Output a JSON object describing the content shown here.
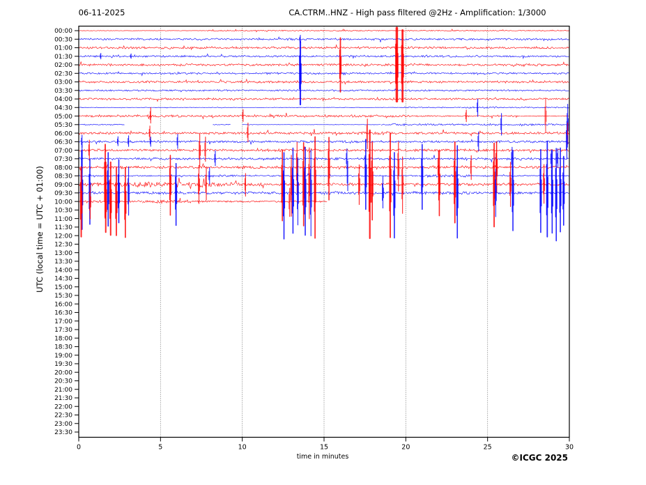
{
  "header": {
    "date": "06-11-2025",
    "title": "CA.CTRM..HNZ - High pass filtered @2Hz - Amplification: 1/3000"
  },
  "footer": {
    "xlabel": "time in minutes",
    "credit": "©ICGC 2025"
  },
  "colors": {
    "trace_hour": "#ff0000",
    "trace_half_hour": "#0000ff",
    "frame": "#000000",
    "grid": "#555555",
    "text": "#000000",
    "background": "#ffffff"
  },
  "chart_data": {
    "type": "line",
    "subtype": "helicorder-seismogram",
    "title": "CA.CTRM..HNZ - High pass filtered @2Hz - Amplification: 1/3000",
    "date": "06-11-2025",
    "xlabel": "time in minutes",
    "ylabel": "UTC (local time = UTC + 01:00)",
    "xlim": [
      0,
      30
    ],
    "x_ticks": [
      0,
      5,
      10,
      15,
      20,
      25,
      30
    ],
    "grid_minutes": [
      5,
      10,
      15,
      20,
      25
    ],
    "grid_on": true,
    "minutes_per_line": 30,
    "y_ticks": [
      "00:00",
      "00:30",
      "01:00",
      "01:30",
      "02:00",
      "02:30",
      "03:00",
      "03:30",
      "04:00",
      "04:30",
      "05:00",
      "05:30",
      "06:00",
      "06:30",
      "07:00",
      "07:30",
      "08:00",
      "08:30",
      "09:00",
      "09:30",
      "10:00",
      "10:30",
      "11:00",
      "11:30",
      "12:00",
      "12:30",
      "13:00",
      "13:30",
      "14:00",
      "14:30",
      "15:00",
      "15:30",
      "16:00",
      "16:30",
      "17:00",
      "17:30",
      "18:00",
      "18:30",
      "19:00",
      "19:30",
      "20:00",
      "20:30",
      "21:00",
      "21:30",
      "22:00",
      "22:30",
      "23:00",
      "23:30"
    ],
    "rows": [
      {
        "utc": "00:00",
        "color": "red",
        "noise": [
          [
            0,
            7.8,
            0.35
          ],
          [
            7.8,
            30,
            0.85
          ]
        ]
      },
      {
        "utc": "00:30",
        "color": "blue",
        "noise": [
          [
            0,
            30,
            1.5
          ]
        ]
      },
      {
        "utc": "01:00",
        "color": "red",
        "noise": [
          [
            0,
            30,
            1.8
          ]
        ]
      },
      {
        "utc": "01:30",
        "color": "blue",
        "noise": [
          [
            0,
            30,
            1.6
          ]
        ]
      },
      {
        "utc": "02:00",
        "color": "red",
        "noise": [
          [
            0,
            30,
            1.8
          ]
        ]
      },
      {
        "utc": "02:30",
        "color": "blue",
        "noise": [
          [
            0,
            30,
            1.5
          ]
        ]
      },
      {
        "utc": "03:00",
        "color": "red",
        "noise": [
          [
            0,
            30,
            1.8
          ]
        ]
      },
      {
        "utc": "03:30",
        "color": "blue",
        "noise": [
          [
            0,
            30,
            1.3
          ]
        ]
      },
      {
        "utc": "04:00",
        "color": "red",
        "noise": [
          [
            0,
            30,
            1.7
          ]
        ]
      },
      {
        "utc": "04:30",
        "color": "blue",
        "noise": [
          [
            0,
            20,
            0.45
          ],
          [
            20,
            23.4,
            0.9
          ],
          [
            23.4,
            25.7,
            1.7
          ],
          [
            25.7,
            30,
            0.9
          ]
        ]
      },
      {
        "utc": "05:00",
        "color": "red",
        "noise": [
          [
            0,
            20.5,
            2.0
          ],
          [
            20.5,
            27,
            1.2
          ],
          [
            27,
            30,
            0.6
          ]
        ]
      },
      {
        "utc": "05:30",
        "color": "blue",
        "noise": [
          [
            0,
            2.8,
            0.9
          ],
          [
            8.2,
            9.3,
            0.7
          ],
          [
            10,
            18.5,
            0.3
          ],
          [
            18.5,
            30,
            1.4
          ]
        ]
      },
      {
        "utc": "06:00",
        "color": "red",
        "noise": [
          [
            0,
            17,
            2.0
          ],
          [
            17,
            19.5,
            2.6
          ],
          [
            19.5,
            30,
            2.0
          ]
        ]
      },
      {
        "utc": "06:30",
        "color": "blue",
        "noise": [
          [
            0,
            30,
            1.8
          ]
        ]
      },
      {
        "utc": "07:00",
        "color": "red",
        "noise": [
          [
            0,
            30,
            2.0
          ]
        ]
      },
      {
        "utc": "07:30",
        "color": "blue",
        "noise": [
          [
            0,
            30,
            1.8
          ]
        ]
      },
      {
        "utc": "08:00",
        "color": "red",
        "noise": [
          [
            0,
            30,
            2.1
          ]
        ]
      },
      {
        "utc": "08:30",
        "color": "blue",
        "noise": [
          [
            0,
            7.9,
            1.1
          ],
          [
            7.9,
            9.7,
            2.0
          ],
          [
            9.7,
            20.8,
            1.1
          ],
          [
            20.8,
            24,
            2.1
          ],
          [
            24,
            30,
            1.1
          ]
        ]
      },
      {
        "utc": "09:00",
        "color": "red",
        "noise": [
          [
            0,
            0.7,
            4.5
          ],
          [
            0.7,
            1.6,
            3.2
          ],
          [
            1.6,
            2.7,
            4.2
          ],
          [
            2.7,
            3.3,
            3.0
          ],
          [
            3.3,
            4.6,
            5.5
          ],
          [
            4.6,
            5.5,
            3.6
          ],
          [
            5.5,
            6.3,
            4.6
          ],
          [
            6.3,
            7.2,
            3.4
          ],
          [
            7.2,
            8.4,
            5.2
          ],
          [
            8.4,
            9.7,
            3.8
          ],
          [
            9.7,
            11.5,
            2.4
          ],
          [
            11.5,
            30,
            2.2
          ]
        ]
      },
      {
        "utc": "09:30",
        "color": "blue",
        "noise": [
          [
            0,
            5.8,
            2.0
          ],
          [
            5.8,
            6.6,
            3.2
          ],
          [
            6.6,
            13,
            2.0
          ],
          [
            13,
            16,
            2.6
          ],
          [
            16,
            20,
            2.0
          ],
          [
            20,
            24,
            2.6
          ],
          [
            24,
            30,
            2.0
          ]
        ]
      },
      {
        "utc": "10:00",
        "color": "red",
        "noise": [
          [
            0,
            3.9,
            1.7
          ],
          [
            3.9,
            6.9,
            2.6
          ],
          [
            6.9,
            15.2,
            1.4
          ]
        ]
      }
    ],
    "events": [
      [
        "00:30",
        13.55,
        0.5
      ],
      [
        "01:30",
        1.35,
        0.35
      ],
      [
        "01:30",
        3.2,
        0.3
      ],
      [
        "02:30",
        13.55,
        4.2,
        2.2
      ],
      [
        "02:00",
        16.0,
        3.5,
        1.8
      ],
      [
        "02:00",
        19.45,
        4.5,
        3.5
      ],
      [
        "02:00",
        19.8,
        4.3,
        2.8
      ],
      [
        "04:30",
        24.4,
        1.1
      ],
      [
        "05:00",
        4.4,
        1.0
      ],
      [
        "05:00",
        10.05,
        0.8
      ],
      [
        "05:00",
        23.7,
        0.8
      ],
      [
        "05:00",
        28.55,
        2.3,
        1.6,
        0.5
      ],
      [
        "05:30",
        25.85,
        1.5
      ],
      [
        "05:30",
        29.9,
        2.6
      ],
      [
        "06:00",
        4.35,
        0.9
      ],
      [
        "06:00",
        10.35,
        1.2
      ],
      [
        "06:00",
        17.65,
        1.9
      ],
      [
        "06:00",
        29.9,
        1.4
      ],
      [
        "06:30",
        0.2,
        0.8
      ],
      [
        "06:30",
        2.4,
        0.6
      ],
      [
        "06:30",
        3.05,
        0.7
      ],
      [
        "06:30",
        4.4,
        0.6
      ],
      [
        "06:30",
        6.05,
        0.9
      ],
      [
        "06:30",
        24.45,
        1.2
      ],
      [
        "06:30",
        29.85,
        2.4
      ],
      [
        "07:00",
        0.65,
        1.2
      ],
      [
        "07:00",
        7.4,
        2.2
      ],
      [
        "07:00",
        7.75,
        1.6
      ],
      [
        "07:30",
        0.2,
        1.8
      ],
      [
        "07:30",
        8.35,
        1.0
      ],
      [
        "07:30",
        16.4,
        1.2
      ],
      [
        "07:30",
        26.5,
        1.4
      ],
      [
        "07:30",
        28.9,
        1.2
      ],
      [
        "07:30",
        29.3,
        1.2
      ],
      [
        "08:00",
        13.35,
        3.0
      ],
      [
        "08:00",
        15.3,
        4.0,
        1.6
      ],
      [
        "08:00",
        19.55,
        3.0
      ],
      [
        "08:00",
        22.0,
        2.0
      ],
      [
        "08:00",
        24.0,
        1.5
      ],
      [
        "08:00",
        25.55,
        3.5,
        1.6
      ],
      [
        "08:30",
        8.0,
        1.0
      ],
      [
        "08:30",
        16.45,
        2.0
      ],
      [
        "08:30",
        17.55,
        4.5,
        1.6
      ],
      [
        "08:30",
        21.0,
        4.2,
        1.6
      ],
      [
        "09:00",
        1.62,
        5.0,
        1.8
      ],
      [
        "09:00",
        5.6,
        3.6,
        1.6
      ],
      [
        "09:00",
        7.35,
        2.5
      ],
      [
        "09:00",
        7.8,
        2.0
      ],
      [
        "09:00",
        10.2,
        1.5
      ],
      [
        "09:00",
        12.45,
        4.5,
        1.6
      ],
      [
        "09:00",
        13.0,
        4.0
      ],
      [
        "09:00",
        13.75,
        5.0,
        1.6
      ],
      [
        "09:00",
        14.1,
        4.5
      ],
      [
        "09:00",
        14.45,
        6.5,
        1.7
      ],
      [
        "09:00",
        17.15,
        2.5
      ],
      [
        "09:00",
        17.8,
        6.5,
        2.2
      ],
      [
        "09:00",
        17.95,
        5.0,
        1.6
      ],
      [
        "09:00",
        19.05,
        7.0,
        1.8
      ],
      [
        "09:00",
        19.8,
        3.5
      ],
      [
        "09:00",
        22.05,
        4.2,
        1.6
      ],
      [
        "09:00",
        23.0,
        5.5,
        1.8
      ],
      [
        "09:00",
        25.4,
        5.0,
        1.8
      ],
      [
        "09:00",
        26.4,
        3.0
      ],
      [
        "09:00",
        28.45,
        2.5
      ],
      [
        "09:30",
        0.2,
        5.3,
        1.8
      ],
      [
        "09:30",
        0.68,
        4.5,
        1.6
      ],
      [
        "09:30",
        1.8,
        4.8,
        1.6
      ],
      [
        "09:30",
        2.45,
        4.4,
        1.6
      ],
      [
        "09:30",
        3.05,
        3.3
      ],
      [
        "09:30",
        5.95,
        4.0,
        1.6
      ],
      [
        "09:30",
        12.55,
        5.5,
        1.6
      ],
      [
        "09:30",
        13.1,
        5.8,
        1.6
      ],
      [
        "09:30",
        13.4,
        4.5
      ],
      [
        "09:30",
        13.85,
        6.0,
        1.6
      ],
      [
        "09:30",
        14.2,
        5.5
      ],
      [
        "09:30",
        18.6,
        2.2
      ],
      [
        "09:30",
        19.3,
        5.5,
        1.6
      ],
      [
        "09:30",
        23.15,
        6.0,
        1.6
      ],
      [
        "09:30",
        25.5,
        3.0
      ],
      [
        "09:30",
        26.55,
        5.5,
        1.6
      ],
      [
        "09:30",
        28.25,
        5.5,
        1.6
      ],
      [
        "09:30",
        28.65,
        6.5,
        1.8
      ],
      [
        "09:30",
        28.95,
        5.0,
        1.6
      ],
      [
        "09:30",
        29.2,
        6.0,
        1.6
      ],
      [
        "09:30",
        29.45,
        5.5,
        1.6
      ],
      [
        "09:30",
        29.65,
        4.5,
        1.6
      ],
      [
        "10:00",
        0.15,
        4.6,
        2.0
      ],
      [
        "10:00",
        0.7,
        2.2
      ],
      [
        "10:00",
        1.65,
        4.6,
        2.0
      ],
      [
        "10:00",
        1.95,
        4.8,
        2.0
      ],
      [
        "10:00",
        2.3,
        4.6,
        1.8
      ],
      [
        "10:00",
        2.85,
        4.4,
        1.7
      ],
      [
        "10:00",
        12.9,
        1.8
      ]
    ]
  }
}
